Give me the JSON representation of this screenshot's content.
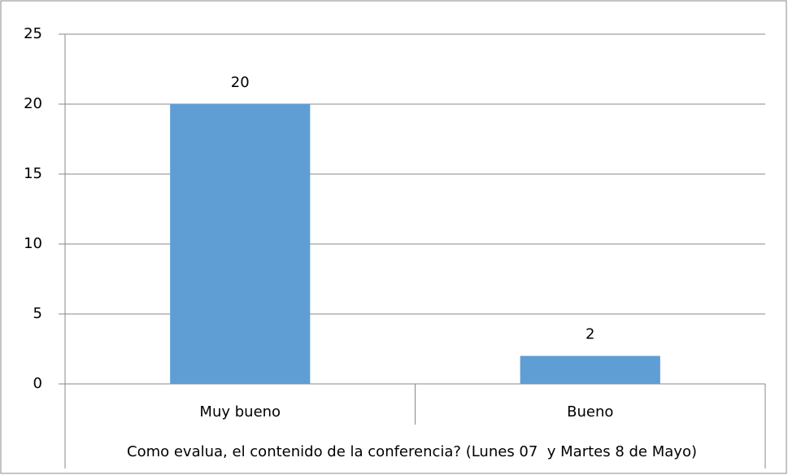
{
  "chart_data": {
    "type": "bar",
    "categories": [
      "Muy bueno",
      "Bueno"
    ],
    "values": [
      20,
      2
    ],
    "color": "#5f9dd5",
    "xlabel": "Como evalua, el contenido de la conferencia? (Lunes 07  y Martes 8 de Mayo)",
    "ylim": [
      0,
      25
    ],
    "yticks": [
      0,
      5,
      10,
      15,
      20,
      25
    ],
    "grid": true,
    "data_labels": true
  }
}
